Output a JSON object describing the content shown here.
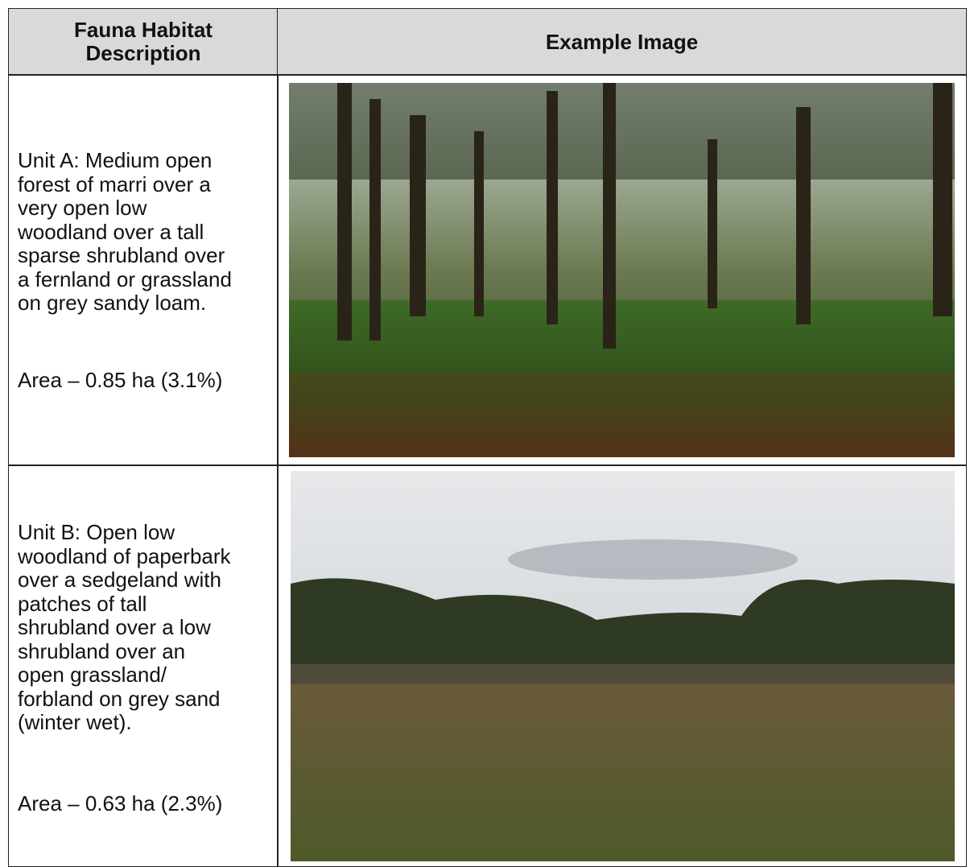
{
  "table": {
    "header": [
      "Fauna Habitat Description",
      "Example Image"
    ],
    "rows": [
      {
        "description": [
          "Unit A: Medium open",
          "forest of marri over a",
          "very open low",
          "woodland over a tall",
          "sparse shrubland over",
          "a fernland or grassland",
          "on grey sandy loam."
        ],
        "area": "Area – 0.85 ha (3.1%)"
      },
      {
        "description": [
          "Unit B: Open low",
          "woodland of paperbark",
          "over a sedgeland with",
          "patches of tall",
          "shrubland over a low",
          "shrubland over an",
          "open grassland/",
          "forbland on grey sand",
          "(winter wet)."
        ],
        "area": "Area – 0.63 ha (2.3%)"
      }
    ]
  }
}
